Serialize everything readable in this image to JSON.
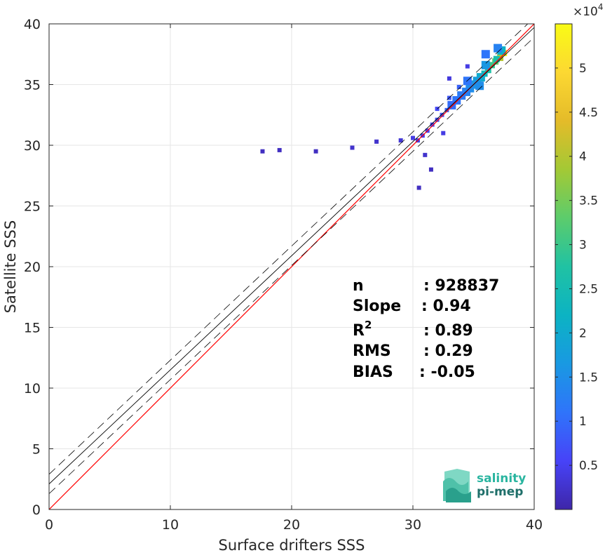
{
  "chart_data": {
    "type": "heatmap",
    "xlabel": "Surface drifters SSS",
    "ylabel": "Satellite SSS",
    "xlim": [
      0,
      40
    ],
    "ylim": [
      0,
      40
    ],
    "x_ticks": [
      "0",
      "10",
      "20",
      "30",
      "40"
    ],
    "y_ticks": [
      "0",
      "5",
      "10",
      "15",
      "20",
      "25",
      "30",
      "35",
      "40"
    ],
    "grid": true,
    "colorbar": {
      "multiplier": "×10",
      "exponent": "4",
      "range": [
        0,
        5.5
      ],
      "ticks": [
        "0.5",
        "1",
        "1.5",
        "2",
        "2.5",
        "3",
        "3.5",
        "4",
        "4.5",
        "5"
      ],
      "colormap": [
        "#3e26a8",
        "#4743f8",
        "#2f74fa",
        "#1999e2",
        "#0cb3c3",
        "#20c2a3",
        "#5ccc6c",
        "#a3c935",
        "#e4bb29",
        "#fcd832",
        "#f9fb15"
      ]
    },
    "lines": {
      "identity": {
        "slope": 1,
        "intercept": 0,
        "color": "#ff0000"
      },
      "regression": {
        "slope": 0.94,
        "intercept": 2.1,
        "color": "#000000"
      },
      "confidence_offset": 0.8
    },
    "density_points": [
      [
        37.5,
        37.6,
        5.3
      ],
      [
        37.2,
        37.2,
        3.1
      ],
      [
        36.8,
        36.9,
        2.2
      ],
      [
        36.5,
        36.6,
        1.8
      ],
      [
        36.2,
        36.2,
        1.5
      ],
      [
        35.9,
        35.9,
        1.2
      ],
      [
        35.6,
        35.6,
        0.9
      ],
      [
        35.3,
        35.3,
        0.7
      ],
      [
        35.0,
        35.0,
        0.6
      ],
      [
        34.7,
        34.7,
        0.5
      ],
      [
        34.4,
        34.4,
        0.4
      ],
      [
        34.0,
        34.1,
        0.35
      ],
      [
        33.6,
        33.7,
        0.3
      ],
      [
        33.2,
        33.3,
        0.25
      ],
      [
        32.8,
        32.9,
        0.2
      ],
      [
        32.4,
        32.5,
        0.15
      ],
      [
        32.0,
        32.1,
        0.12
      ],
      [
        31.6,
        31.7,
        0.1
      ],
      [
        31.2,
        31.2,
        0.08
      ],
      [
        30.8,
        30.8,
        0.06
      ],
      [
        30.4,
        30.4,
        0.05
      ],
      [
        36.9,
        37.1,
        1.4
      ],
      [
        37.3,
        37.8,
        1.0
      ],
      [
        36.0,
        36.6,
        0.6
      ],
      [
        35.5,
        34.9,
        0.5
      ],
      [
        34.5,
        35.3,
        0.3
      ],
      [
        33.8,
        34.8,
        0.2
      ],
      [
        33.0,
        33.9,
        0.15
      ],
      [
        32.0,
        33.0,
        0.1
      ],
      [
        30.0,
        30.6,
        0.05
      ],
      [
        29.0,
        30.4,
        0.03
      ],
      [
        27.0,
        30.3,
        0.02
      ],
      [
        25.0,
        29.8,
        0.02
      ],
      [
        22.0,
        29.5,
        0.01
      ],
      [
        19.0,
        29.6,
        0.01
      ],
      [
        17.6,
        29.5,
        0.01
      ],
      [
        31.0,
        29.2,
        0.02
      ],
      [
        31.5,
        28.0,
        0.01
      ],
      [
        30.5,
        26.5,
        0.01
      ],
      [
        32.5,
        31.0,
        0.05
      ],
      [
        34.5,
        36.5,
        0.05
      ],
      [
        33.0,
        35.5,
        0.04
      ],
      [
        36.0,
        37.5,
        0.3
      ],
      [
        37.0,
        38.0,
        0.4
      ]
    ]
  },
  "stats": [
    {
      "key": "n",
      "sup": "",
      "value": ": 928837"
    },
    {
      "key": "Slope",
      "sup": "",
      "value": ": 0.94"
    },
    {
      "key": "R",
      "sup": "2",
      "value": ": 0.89"
    },
    {
      "key": "RMS",
      "sup": "",
      "value": ": 0.29"
    },
    {
      "key": "BIAS",
      "sup": "",
      "value": ": -0.05"
    }
  ],
  "logo": {
    "line1": "salinity",
    "line2": "pi-mep",
    "color1": "#2ab5a0",
    "color2": "#1f6f6a"
  }
}
